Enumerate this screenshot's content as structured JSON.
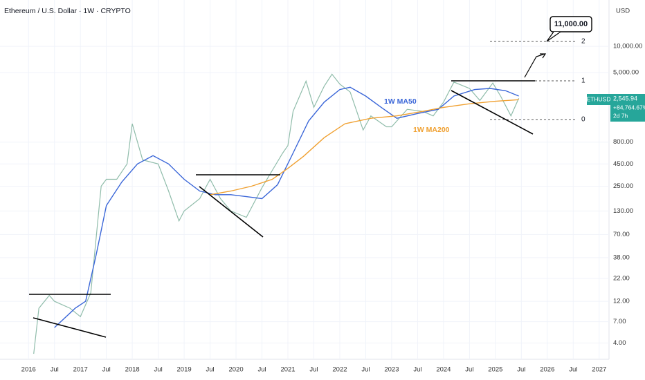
{
  "chart_data": {
    "type": "line",
    "title": "Ethereum / U.S. Dollar · 1W · CRYPTO",
    "currency": "USD",
    "log_scale": true,
    "grid": true,
    "xlim": [
      2015.45,
      2027.19
    ],
    "ylim": [
      2.6,
      34000
    ],
    "xticks": [
      {
        "value": 2016,
        "label": "2016"
      },
      {
        "value": 2016.5,
        "label": "Jul"
      },
      {
        "value": 2017,
        "label": "2017"
      },
      {
        "value": 2017.5,
        "label": "Jul"
      },
      {
        "value": 2018,
        "label": "2018"
      },
      {
        "value": 2018.5,
        "label": "Jul"
      },
      {
        "value": 2019,
        "label": "2019"
      },
      {
        "value": 2019.5,
        "label": "Jul"
      },
      {
        "value": 2020,
        "label": "2020"
      },
      {
        "value": 2020.5,
        "label": "Jul"
      },
      {
        "value": 2021,
        "label": "2021"
      },
      {
        "value": 2021.5,
        "label": "Jul"
      },
      {
        "value": 2022,
        "label": "2022"
      },
      {
        "value": 2022.5,
        "label": "Jul"
      },
      {
        "value": 2023,
        "label": "2023"
      },
      {
        "value": 2023.5,
        "label": "Jul"
      },
      {
        "value": 2024,
        "label": "2024"
      },
      {
        "value": 2024.5,
        "label": "Jul"
      },
      {
        "value": 2025,
        "label": "2025"
      },
      {
        "value": 2025.5,
        "label": "Jul"
      },
      {
        "value": 2026,
        "label": "2026"
      },
      {
        "value": 2026.5,
        "label": "Jul"
      },
      {
        "value": 2027,
        "label": "2027"
      }
    ],
    "yticks": [
      {
        "value": 4,
        "label": "4.00"
      },
      {
        "value": 7,
        "label": "7.00"
      },
      {
        "value": 12,
        "label": "12.00"
      },
      {
        "value": 22,
        "label": "22.00"
      },
      {
        "value": 38,
        "label": "38.00"
      },
      {
        "value": 70,
        "label": "70.00"
      },
      {
        "value": 130,
        "label": "130.00"
      },
      {
        "value": 250,
        "label": "250.00"
      },
      {
        "value": 450,
        "label": "450.00"
      },
      {
        "value": 800,
        "label": "800.00"
      },
      {
        "value": 5000,
        "label": "5,000.00"
      },
      {
        "value": 10000,
        "label": "10,000.00"
      }
    ],
    "series": [
      {
        "name": "ETHUSD",
        "color": "#8fbcaa",
        "x": [
          2016.1,
          2016.2,
          2016.4,
          2016.5,
          2016.8,
          2017.0,
          2017.2,
          2017.4,
          2017.5,
          2017.7,
          2017.9,
          2018.0,
          2018.2,
          2018.5,
          2018.7,
          2018.9,
          2019.0,
          2019.3,
          2019.5,
          2019.7,
          2019.9,
          2020.2,
          2020.5,
          2020.7,
          2020.9,
          2021.0,
          2021.1,
          2021.35,
          2021.5,
          2021.7,
          2021.85,
          2022.0,
          2022.2,
          2022.45,
          2022.6,
          2022.9,
          2023.0,
          2023.3,
          2023.6,
          2023.8,
          2024.0,
          2024.2,
          2024.5,
          2024.7,
          2024.95,
          2025.1,
          2025.3,
          2025.45
        ],
        "values": [
          3,
          10,
          14,
          12,
          10,
          8,
          15,
          250,
          300,
          300,
          450,
          1300,
          500,
          450,
          220,
          100,
          130,
          180,
          300,
          180,
          130,
          110,
          240,
          380,
          600,
          730,
          1800,
          4000,
          2000,
          3500,
          4800,
          3700,
          3000,
          1100,
          1600,
          1200,
          1200,
          1900,
          1800,
          1600,
          2300,
          3900,
          3300,
          2400,
          3800,
          2700,
          1600,
          2545.94
        ]
      },
      {
        "name": "1W MA50",
        "color": "#3a66d8",
        "x": [
          2016.5,
          2016.9,
          2017.1,
          2017.3,
          2017.5,
          2017.8,
          2018.1,
          2018.4,
          2018.7,
          2019.0,
          2019.3,
          2019.6,
          2019.9,
          2020.2,
          2020.5,
          2020.8,
          2021.1,
          2021.4,
          2021.7,
          2022.0,
          2022.2,
          2022.5,
          2022.8,
          2023.1,
          2023.5,
          2023.9,
          2024.2,
          2024.6,
          2024.9,
          2025.2,
          2025.45
        ],
        "values": [
          6,
          10,
          12,
          40,
          150,
          280,
          450,
          560,
          450,
          300,
          220,
          200,
          200,
          190,
          180,
          260,
          600,
          1400,
          2300,
          3200,
          3400,
          2700,
          2000,
          1500,
          1700,
          1900,
          2700,
          3200,
          3300,
          3100,
          2700
        ]
      },
      {
        "name": "1W MA200",
        "color": "#f0a030",
        "x": [
          2019.5,
          2019.9,
          2020.3,
          2020.7,
          2021.0,
          2021.3,
          2021.7,
          2022.1,
          2022.6,
          2023.1,
          2023.6,
          2024.0,
          2024.5,
          2025.0,
          2025.45
        ],
        "values": [
          200,
          220,
          250,
          300,
          400,
          550,
          900,
          1300,
          1500,
          1600,
          1800,
          2000,
          2200,
          2350,
          2450
        ]
      }
    ],
    "price_tag": {
      "symbol": "ETHUSD",
      "price": "2,545.94",
      "change": "+84,764.67%",
      "countdown": "2d 7h"
    },
    "fib_levels": [
      "0",
      "1",
      "2"
    ],
    "target_label": "11,000.00"
  }
}
